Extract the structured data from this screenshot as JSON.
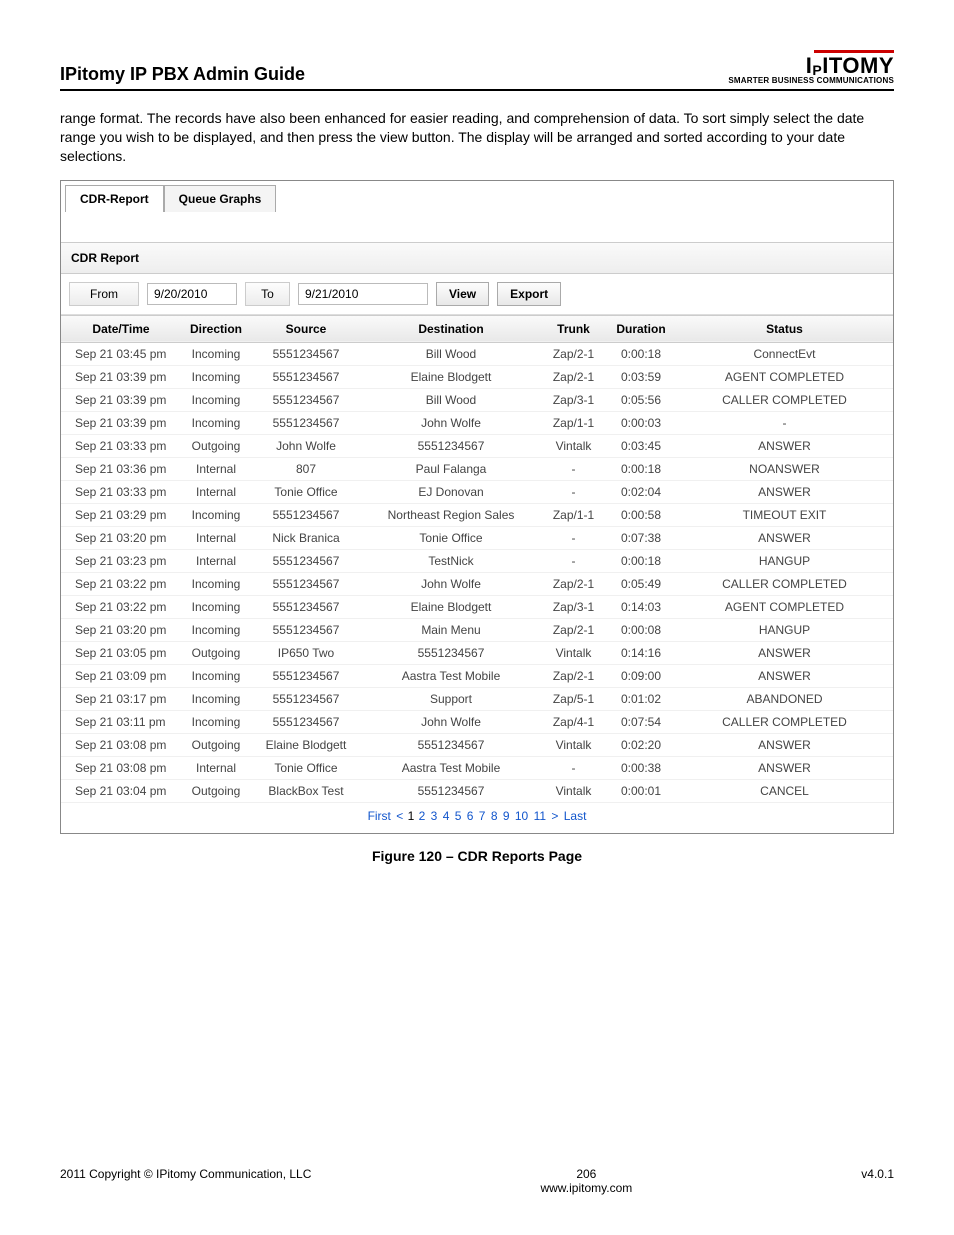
{
  "header": {
    "guide_title": "IPitomy IP PBX Admin Guide",
    "logo_text": "IPITOMY",
    "logo_tagline": "SMARTER BUSINESS COMMUNICATIONS"
  },
  "intro": "range format. The records have also been enhanced for easier reading, and comprehension of data. To sort simply select the date range you wish to be displayed, and then press the view button. The display will be arranged and sorted according to your date selections.",
  "tabs": {
    "cdr": "CDR-Report",
    "queue": "Queue Graphs"
  },
  "report_title": "CDR Report",
  "filters": {
    "from_label": "From",
    "from_value": "9/20/2010",
    "to_label": "To",
    "to_value": "9/21/2010",
    "view_btn": "View",
    "export_btn": "Export"
  },
  "columns": [
    "Date/Time",
    "Direction",
    "Source",
    "Destination",
    "Trunk",
    "Duration",
    "Status"
  ],
  "status_colors": {
    "ConnectEvt": "st-black",
    "AGENT COMPLETED": "st-green",
    "CALLER COMPLETED": "st-green",
    "-": "st-black",
    "ANSWER": "st-green",
    "NOANSWER": "st-blue",
    "TIMEOUT EXIT": "st-red",
    "HANGUP": "st-red",
    "ABANDONED": "st-red",
    "CANCEL": "st-blue"
  },
  "rows": [
    [
      "Sep 21 03:45 pm",
      "Incoming",
      "5551234567",
      "Bill Wood",
      "Zap/2-1",
      "0:00:18",
      "ConnectEvt"
    ],
    [
      "Sep 21 03:39 pm",
      "Incoming",
      "5551234567",
      "Elaine Blodgett",
      "Zap/2-1",
      "0:03:59",
      "AGENT COMPLETED"
    ],
    [
      "Sep 21 03:39 pm",
      "Incoming",
      "5551234567",
      "Bill Wood",
      "Zap/3-1",
      "0:05:56",
      "CALLER COMPLETED"
    ],
    [
      "Sep 21 03:39 pm",
      "Incoming",
      "5551234567",
      "John Wolfe",
      "Zap/1-1",
      "0:00:03",
      "-"
    ],
    [
      "Sep 21 03:33 pm",
      "Outgoing",
      "John Wolfe",
      "5551234567",
      "Vintalk",
      "0:03:45",
      "ANSWER"
    ],
    [
      "Sep 21 03:36 pm",
      "Internal",
      "807",
      "Paul Falanga",
      "-",
      "0:00:18",
      "NOANSWER"
    ],
    [
      "Sep 21 03:33 pm",
      "Internal",
      "Tonie Office",
      "EJ Donovan",
      "-",
      "0:02:04",
      "ANSWER"
    ],
    [
      "Sep 21 03:29 pm",
      "Incoming",
      "5551234567",
      "Northeast Region Sales",
      "Zap/1-1",
      "0:00:58",
      "TIMEOUT EXIT"
    ],
    [
      "Sep 21 03:20 pm",
      "Internal",
      "Nick Branica",
      "Tonie Office",
      "-",
      "0:07:38",
      "ANSWER"
    ],
    [
      "Sep 21 03:23 pm",
      "Internal",
      "5551234567",
      "TestNick",
      "-",
      "0:00:18",
      "HANGUP"
    ],
    [
      "Sep 21 03:22 pm",
      "Incoming",
      "5551234567",
      "John Wolfe",
      "Zap/2-1",
      "0:05:49",
      "CALLER COMPLETED"
    ],
    [
      "Sep 21 03:22 pm",
      "Incoming",
      "5551234567",
      "Elaine Blodgett",
      "Zap/3-1",
      "0:14:03",
      "AGENT COMPLETED"
    ],
    [
      "Sep 21 03:20 pm",
      "Incoming",
      "5551234567",
      "Main Menu",
      "Zap/2-1",
      "0:00:08",
      "HANGUP"
    ],
    [
      "Sep 21 03:05 pm",
      "Outgoing",
      "IP650 Two",
      "5551234567",
      "Vintalk",
      "0:14:16",
      "ANSWER"
    ],
    [
      "Sep 21 03:09 pm",
      "Incoming",
      "5551234567",
      "Aastra Test Mobile",
      "Zap/2-1",
      "0:09:00",
      "ANSWER"
    ],
    [
      "Sep 21 03:17 pm",
      "Incoming",
      "5551234567",
      "Support",
      "Zap/5-1",
      "0:01:02",
      "ABANDONED"
    ],
    [
      "Sep 21 03:11 pm",
      "Incoming",
      "5551234567",
      "John Wolfe",
      "Zap/4-1",
      "0:07:54",
      "CALLER COMPLETED"
    ],
    [
      "Sep 21 03:08 pm",
      "Outgoing",
      "Elaine Blodgett",
      "5551234567",
      "Vintalk",
      "0:02:20",
      "ANSWER"
    ],
    [
      "Sep 21 03:08 pm",
      "Internal",
      "Tonie Office",
      "Aastra Test Mobile",
      "-",
      "0:00:38",
      "ANSWER"
    ],
    [
      "Sep 21 03:04 pm",
      "Outgoing",
      "BlackBox Test",
      "5551234567",
      "Vintalk",
      "0:00:01",
      "CANCEL"
    ]
  ],
  "pager": {
    "first": "First",
    "prev": "<",
    "pages": [
      "1",
      "2",
      "3",
      "4",
      "5",
      "6",
      "7",
      "8",
      "9",
      "10",
      "11"
    ],
    "current": "1",
    "next": ">",
    "last": "Last"
  },
  "figure_caption": "Figure 120 – CDR Reports Page",
  "footer": {
    "left": "2011 Copyright © IPitomy Communication, LLC",
    "center_page": "206",
    "center_url": "www.ipitomy.com",
    "right": "v4.0.1"
  }
}
